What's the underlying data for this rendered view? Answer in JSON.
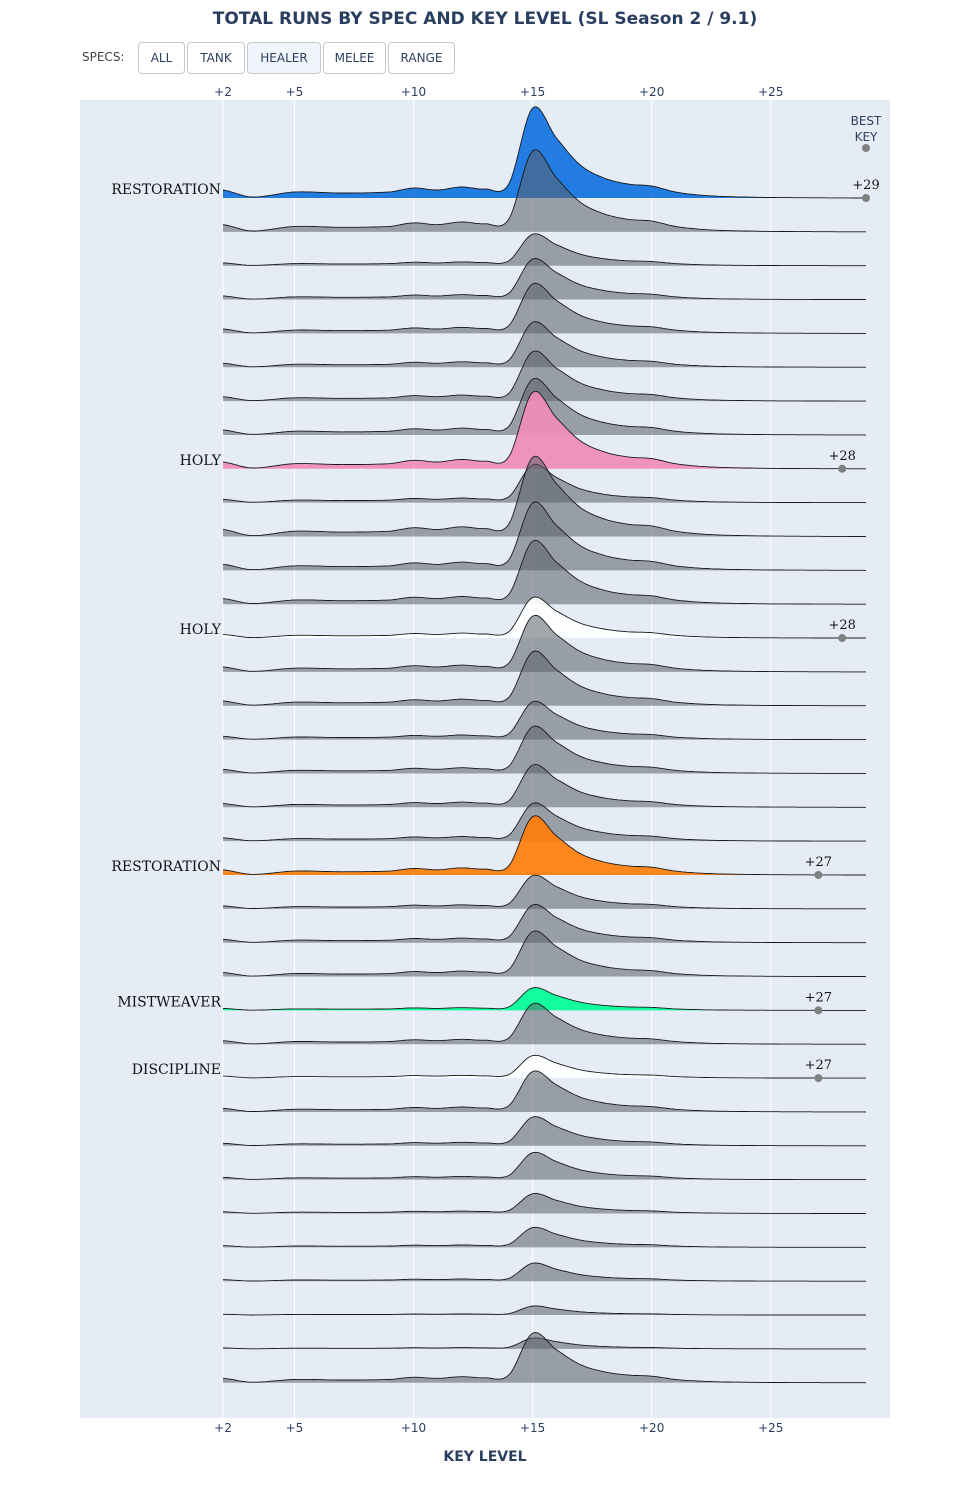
{
  "title": "TOTAL RUNS BY SPEC AND KEY LEVEL (SL Season 2 / 9.1)",
  "controls": {
    "label": "SPECS:",
    "buttons": [
      "ALL",
      "TANK",
      "HEALER",
      "MELEE",
      "RANGE"
    ],
    "active": "HEALER"
  },
  "colors": {
    "background": "#e5ecf6",
    "grid": "#ffffff",
    "gray_fill": "rgba(90,94,104,0.55)",
    "restoration_shaman": "#1172e0",
    "holy_paladin": "#f08bb8",
    "holy_priest": "#ffffff",
    "restoration_druid": "#ff7d0a",
    "mistweaver": "#00ff96",
    "discipline": "#ffffff",
    "marker": "#808080"
  },
  "chart_data": {
    "type": "ridgeline",
    "title": "TOTAL RUNS BY SPEC AND KEY LEVEL (SL Season 2 / 9.1)",
    "xlabel": "KEY LEVEL",
    "xlim": [
      2,
      29
    ],
    "xticks": [
      2,
      5,
      10,
      15,
      20,
      25
    ],
    "xtick_labels": [
      "+2",
      "+5",
      "+10",
      "+15",
      "+20",
      "+25"
    ],
    "grid": true,
    "row_count": 36,
    "best_key_header": "BEST\nKEY",
    "series": [
      {
        "row": 0,
        "name": "RESTORATION",
        "color": "#1172e0",
        "best_key": 29,
        "best_key_label": "+29",
        "peak": 1.0
      },
      {
        "row": 8,
        "name": "HOLY",
        "color": "#f08bb8",
        "best_key": 28,
        "best_key_label": "+28",
        "peak": 0.85
      },
      {
        "row": 13,
        "name": "HOLY",
        "color": "#ffffff",
        "best_key": 28,
        "best_key_label": "+28",
        "peak": 0.45
      },
      {
        "row": 20,
        "name": "RESTORATION",
        "color": "#ff7d0a",
        "best_key": 27,
        "best_key_label": "+27",
        "peak": 0.65
      },
      {
        "row": 24,
        "name": "MISTWEAVER",
        "color": "#00ff96",
        "best_key": 27,
        "best_key_label": "+27",
        "peak": 0.25
      },
      {
        "row": 26,
        "name": "DISCIPLINE",
        "color": "#ffffff",
        "best_key": 27,
        "best_key_label": "+27",
        "peak": 0.25
      }
    ],
    "gray_row_peaks": [
      0.9,
      0.35,
      0.45,
      0.55,
      0.5,
      0.55,
      0.62,
      0.42,
      0.88,
      0.75,
      0.7,
      0.62,
      0.6,
      0.42,
      0.52,
      0.47,
      0.42,
      0.37,
      0.42,
      0.5,
      0.45,
      0.45,
      0.32,
      0.3,
      0.22,
      0.22,
      0.2,
      0.1,
      0.12,
      0.55,
      0.32,
      0.12,
      0.1
    ],
    "profile": {
      "x": [
        2,
        3.2,
        5,
        7,
        9,
        10,
        11,
        12,
        13,
        14,
        15,
        16,
        17,
        18,
        19,
        20,
        21,
        22,
        23,
        25,
        29
      ],
      "relative_density": [
        0.08,
        0.01,
        0.06,
        0.05,
        0.06,
        0.1,
        0.08,
        0.11,
        0.09,
        0.14,
        0.9,
        0.6,
        0.33,
        0.2,
        0.14,
        0.12,
        0.06,
        0.03,
        0.015,
        0.005,
        0
      ]
    }
  },
  "axis": {
    "xlabel": "KEY LEVEL"
  }
}
